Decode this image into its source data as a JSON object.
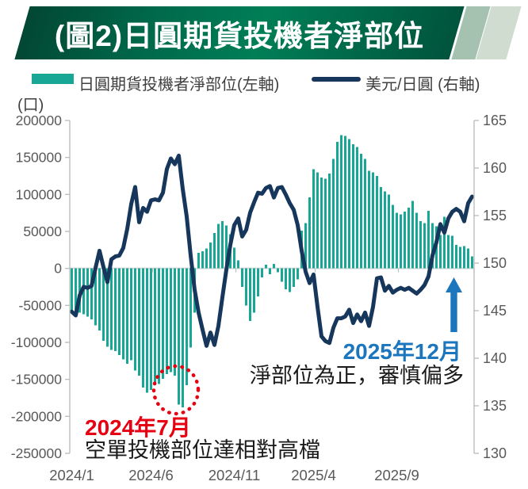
{
  "banner": {
    "title": "(圖2)日圓期貨投機者淨部位"
  },
  "legend": {
    "bar_label": "日圓期貨投機者淨部位(左軸)",
    "line_label": "美元/日圓 (右軸)"
  },
  "colors": {
    "bar": "#18A795",
    "line": "#16365C",
    "red": "#E60012",
    "blue": "#1B76BD",
    "axis_text": "#595959",
    "axis_line": "#BFBFBF",
    "zero_line": "#D9D9D9"
  },
  "annotations": {
    "red_date": "2024年7月",
    "red_text": "空單投機部位達相對高檔",
    "blue_date": "2025年12月",
    "blue_text": "淨部位為正，審慎偏多"
  },
  "chart_data": {
    "type": "combo-bar-line",
    "title": "(圖2)日圓期貨投機者淨部位",
    "left_axis": {
      "unit": "(口)",
      "min": -250000,
      "max": 200000,
      "tick_step": 50000,
      "ticks": [
        "200000",
        "150000",
        "100000",
        "50000",
        "0",
        "-50000",
        "-100000",
        "-150000",
        "-200000",
        "-250000"
      ]
    },
    "right_axis": {
      "min": 130,
      "max": 165,
      "tick_step": 5,
      "ticks": [
        "165",
        "160",
        "155",
        "150",
        "145",
        "140",
        "135",
        "130"
      ]
    },
    "x_axis": {
      "labels": [
        "2024/1",
        "2024/6",
        "2024/11",
        "2025/4",
        "2025/9"
      ],
      "label_week_index": [
        0,
        20,
        41,
        61,
        82
      ],
      "n_points": 102
    },
    "series": [
      {
        "name": "日圓期貨投機者淨部位(左軸)",
        "type": "bar",
        "axis": "left",
        "values": [
          -57000,
          -59000,
          -60000,
          -62000,
          -65000,
          -69000,
          -77000,
          -84000,
          -98000,
          -106000,
          -110000,
          -112000,
          -117000,
          -123000,
          -129000,
          -124000,
          -138000,
          -145000,
          -161000,
          -168000,
          -164000,
          -158000,
          -156000,
          -149000,
          -143000,
          -140000,
          -145000,
          -184000,
          -188000,
          -158000,
          -107000,
          -60000,
          21000,
          23000,
          27000,
          35000,
          48000,
          60000,
          64000,
          58000,
          46000,
          28000,
          11000,
          -25000,
          -50000,
          -71000,
          -60000,
          -38000,
          -12000,
          5000,
          -8000,
          6000,
          -5000,
          -18000,
          -28000,
          -32000,
          -25000,
          -15000,
          51000,
          61000,
          96000,
          134000,
          130000,
          123000,
          121000,
          128000,
          148000,
          171000,
          180000,
          179000,
          175000,
          168000,
          164000,
          155000,
          148000,
          132000,
          130000,
          125000,
          110000,
          104000,
          100000,
          86000,
          75000,
          73000,
          77000,
          82000,
          91000,
          75000,
          64000,
          61000,
          78000,
          61000,
          57000,
          45000,
          70000,
          45000,
          44000,
          32000,
          29000,
          30000,
          27000,
          16000
        ]
      },
      {
        "name": "美元/日圓 (右軸)",
        "type": "line",
        "axis": "right",
        "values": [
          144.9,
          144.5,
          146.6,
          147.5,
          147.4,
          147.6,
          149.5,
          151.3,
          149.6,
          148.0,
          150.4,
          150.7,
          150.8,
          151.6,
          153.6,
          156.2,
          158.0,
          154.3,
          155.8,
          155.4,
          156.6,
          156.7,
          156.6,
          157.4,
          159.9,
          161.0,
          160.4,
          161.3,
          157.8,
          154.9,
          150.8,
          147.2,
          144.8,
          143.0,
          141.3,
          142.7,
          141.4,
          143.4,
          146.4,
          149.3,
          151.9,
          154.0,
          154.7,
          152.8,
          153.5,
          155.3,
          156.4,
          157.4,
          157.3,
          157.9,
          158.1,
          156.9,
          157.9,
          158.0,
          157.2,
          156.3,
          155.6,
          154.0,
          151.3,
          149.1,
          147.9,
          148.8,
          145.4,
          142.3,
          141.8,
          141.6,
          143.2,
          144.2,
          144.2,
          144.4,
          145.1,
          143.7,
          144.6,
          143.9,
          144.8,
          143.4,
          145.4,
          148.4,
          148.5,
          147.1,
          147.6,
          146.9,
          147.2,
          147.4,
          147.2,
          147.4,
          147.1,
          146.8,
          147.2,
          147.7,
          148.6,
          150.8,
          152.2,
          154.1,
          153.2,
          154.7,
          155.4,
          155.7,
          155.4,
          154.4,
          156.3,
          157.0
        ]
      }
    ]
  }
}
